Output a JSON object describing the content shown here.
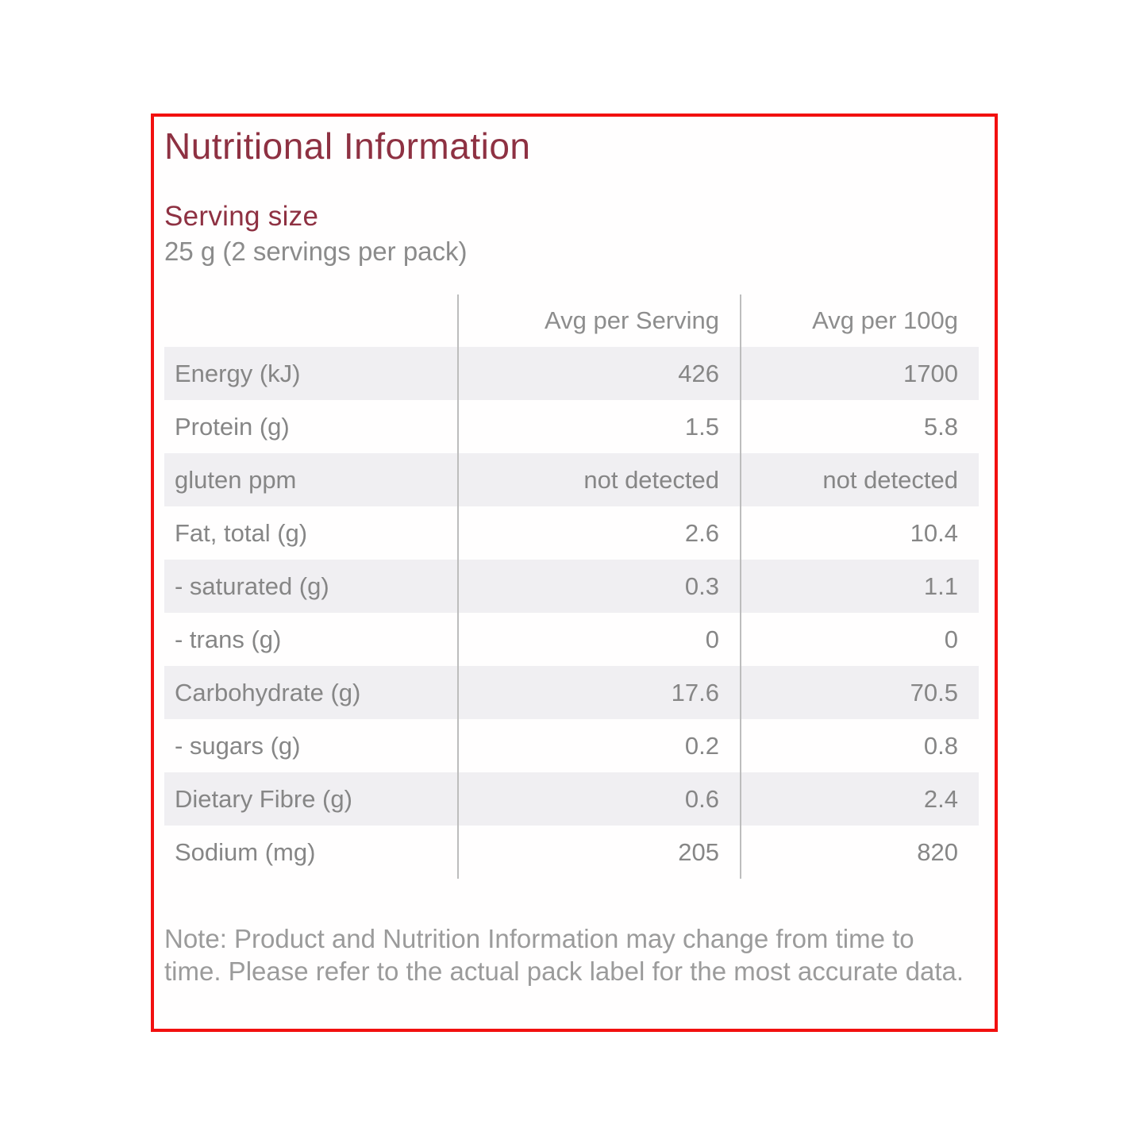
{
  "panel": {
    "title": "Nutritional Information",
    "serving_size_label": "Serving size",
    "serving_size_value": "25 g (2 servings per pack)",
    "note": "Note: Product and Nutrition Information may change from time to time. Please refer to the actual pack label for the most accurate data."
  },
  "table": {
    "col_label": "",
    "col_serving": "Avg per Serving",
    "col_100g": "Avg per 100g",
    "rows": [
      {
        "label": "Energy (kJ)",
        "per_serving": "426",
        "per_100g": "1700"
      },
      {
        "label": "Protein (g)",
        "per_serving": "1.5",
        "per_100g": "5.8"
      },
      {
        "label": "gluten ppm",
        "per_serving": "not detected",
        "per_100g": "not detected"
      },
      {
        "label": "Fat, total (g)",
        "per_serving": "2.6",
        "per_100g": "10.4"
      },
      {
        "label": "- saturated (g)",
        "per_serving": "0.3",
        "per_100g": "1.1"
      },
      {
        "label": "- trans (g)",
        "per_serving": "0",
        "per_100g": "0"
      },
      {
        "label": "Carbohydrate (g)",
        "per_serving": "17.6",
        "per_100g": "70.5"
      },
      {
        "label": "- sugars (g)",
        "per_serving": "0.2",
        "per_100g": "0.8"
      },
      {
        "label": "Dietary Fibre (g)",
        "per_serving": "0.6",
        "per_100g": "2.4"
      },
      {
        "label": "Sodium (mg)",
        "per_serving": "205",
        "per_100g": "820"
      }
    ]
  },
  "chart_data": {
    "type": "table",
    "title": "Nutritional Information",
    "categories": [
      "Energy (kJ)",
      "Protein (g)",
      "gluten ppm",
      "Fat, total (g)",
      "- saturated (g)",
      "- trans (g)",
      "Carbohydrate (g)",
      "- sugars (g)",
      "Dietary Fibre (g)",
      "Sodium (mg)"
    ],
    "series": [
      {
        "name": "Avg per Serving",
        "values": [
          "426",
          "1.5",
          "not detected",
          "2.6",
          "0.3",
          "0",
          "17.6",
          "0.2",
          "0.6",
          "205"
        ]
      },
      {
        "name": "Avg per 100g",
        "values": [
          "1700",
          "5.8",
          "not detected",
          "10.4",
          "1.1",
          "0",
          "70.5",
          "0.8",
          "2.4",
          "820"
        ]
      }
    ]
  },
  "colors": {
    "border_red": "#f2100f",
    "heading_maroon": "#8e3142",
    "body_gray": "#868686",
    "stripe_gray": "#f0eff2",
    "divider_gray": "#bdbdbd"
  }
}
